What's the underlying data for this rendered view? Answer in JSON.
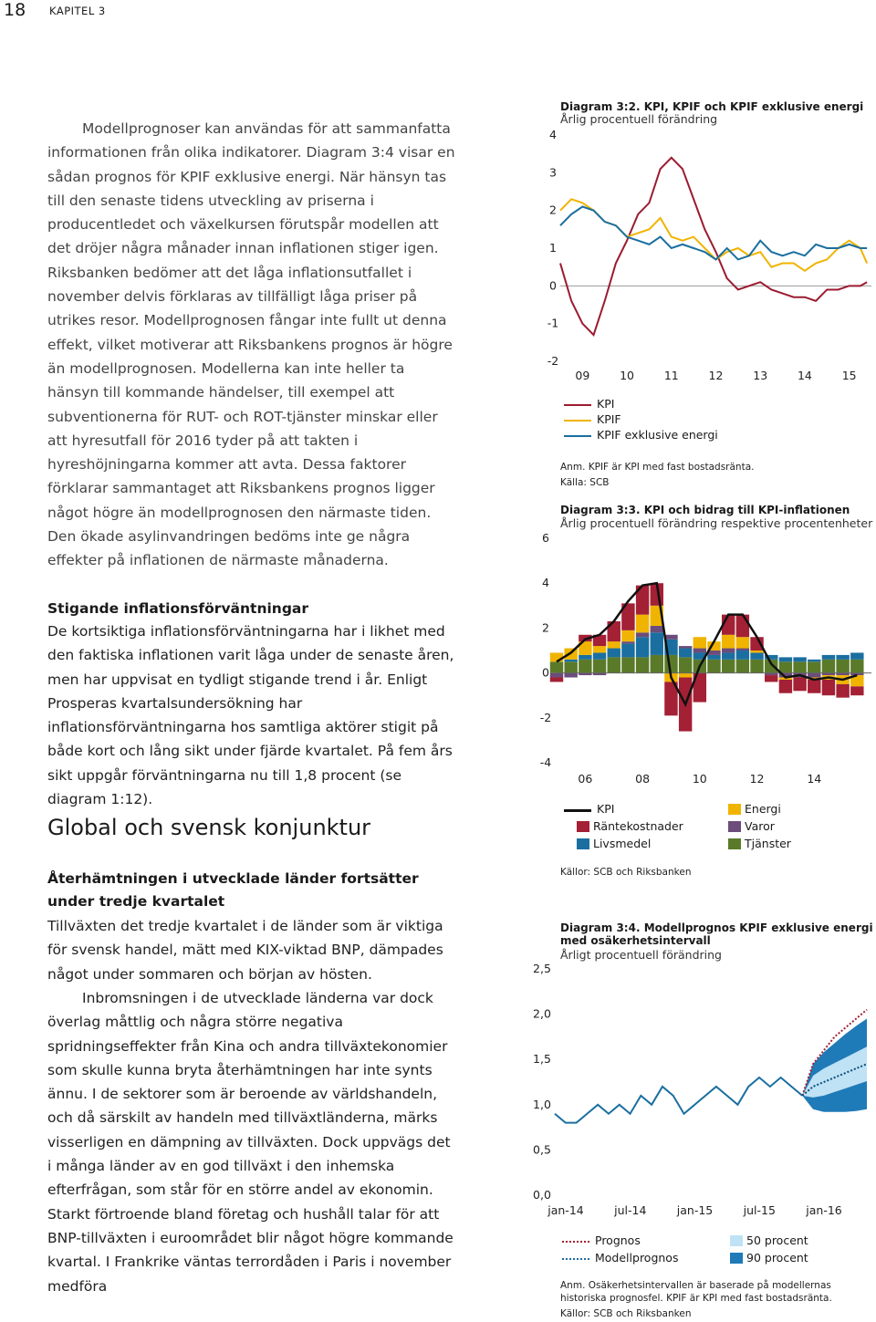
{
  "header": {
    "page_number": "18",
    "chapter": "KAPITEL 3"
  },
  "body": {
    "p1": "Modellprognoser kan användas för att sammanfatta informationen från olika indikatorer. Diagram 3:4 visar en sådan prognos för KPIF exklusive energi. När hänsyn tas till den senaste tidens utveckling av priserna i producentledet och växelkursen förutspår modellen att det dröjer några månader innan inflationen stiger igen. Riksbanken bedömer att det låga inflationsutfallet i november delvis förklaras av tillfälligt låga priser på utrikes resor. Modellprognosen fångar inte fullt ut denna effekt, vilket motiverar att Riksbankens prognos är högre än modellprognosen. Modellerna kan inte heller ta hänsyn till kommande händelser, till exempel att subventionerna för RUT- och ROT-tjänster minskar eller att hyresutfall för 2016 tyder på att takten i hyreshöjningarna kommer att avta. Dessa faktorer förklarar sammantaget att Riksbankens prognos ligger något högre än modellprognosen den närmaste tiden. Den ökade asylinvandringen bedöms inte ge några effekter på inflationen de närmaste månaderna.",
    "sub1": "Stigande inflationsförväntningar",
    "p2": "De kortsiktiga inflationsförväntningarna har i likhet med den faktiska inflationen varit låga under de senaste åren, men har uppvisat en tydligt stigande trend i år. Enligt Prosperas kvartalsundersökning har inflationsförväntningarna hos samtliga aktörer stigit på både kort och lång sikt under fjärde kvartalet. På fem års sikt uppgår förväntningarna nu till 1,8 procent (se diagram 1:12).",
    "section": "Global och svensk konjunktur",
    "sub2": "Återhämtningen i utvecklade länder fortsätter under tredje kvartalet",
    "p3": "Tillväxten det tredje kvartalet i de länder som är viktiga för svensk handel, mätt med KIX-viktad BNP, dämpades något under sommaren och början av hösten.",
    "p4": "Inbromsningen i de utvecklade länderna var dock överlag måttlig och några större negativa spridningseffekter från Kina och andra tillväxtekonomier som skulle kunna bryta återhämtningen har inte synts ännu. I de sektorer som är beroende av världshandeln, och då särskilt av handeln med tillväxtländerna, märks visserligen en dämpning av tillväxten. Dock uppvägs det i många länder av en god tillväxt i den inhemska efterfrågan, som står för en större andel av ekonomin. Starkt förtroende bland företag och hushåll talar för att BNP-tillväxten i euroområdet blir något högre kommande kvartal. I Frankrike väntas terrordåden i Paris i november medföra"
  },
  "chart_data": [
    {
      "type": "line",
      "id": "diagram-3-2",
      "title": "Diagram 3:2. KPI, KPIF och KPIF exklusive energi",
      "subtitle": "Årlig procentuell förändring",
      "ylim": [
        -2,
        4
      ],
      "y_ticks": [
        "4",
        "3",
        "2",
        "1",
        "0",
        "-1",
        "-2"
      ],
      "x_range": [
        2009,
        2016
      ],
      "x_ticks": [
        "09",
        "10",
        "11",
        "12",
        "13",
        "14",
        "15"
      ],
      "legend": [
        "KPI",
        "KPIF",
        "KPIF exklusive energi"
      ],
      "colors": {
        "KPI": "#9b1b30",
        "KPIF": "#f0b400",
        "KPIF exklusive energi": "#1a6fa0"
      },
      "series": [
        {
          "name": "KPI",
          "x": [
            2009.0,
            2009.25,
            2009.5,
            2009.75,
            2010.0,
            2010.25,
            2010.5,
            2010.75,
            2011.0,
            2011.25,
            2011.5,
            2011.75,
            2012.0,
            2012.25,
            2012.5,
            2012.75,
            2013.0,
            2013.25,
            2013.5,
            2013.75,
            2014.0,
            2014.25,
            2014.5,
            2014.75,
            2015.0,
            2015.25,
            2015.5,
            2015.75,
            2015.9
          ],
          "y": [
            0.6,
            -0.4,
            -1.0,
            -1.3,
            -0.4,
            0.6,
            1.2,
            1.9,
            2.2,
            3.1,
            3.4,
            3.1,
            2.3,
            1.5,
            0.9,
            0.2,
            -0.1,
            0.0,
            0.1,
            -0.1,
            -0.2,
            -0.3,
            -0.3,
            -0.4,
            -0.1,
            -0.1,
            0.0,
            0.0,
            0.1
          ]
        },
        {
          "name": "KPIF",
          "x": [
            2009.0,
            2009.25,
            2009.5,
            2009.75,
            2010.0,
            2010.25,
            2010.5,
            2010.75,
            2011.0,
            2011.25,
            2011.5,
            2011.75,
            2012.0,
            2012.25,
            2012.5,
            2012.75,
            2013.0,
            2013.25,
            2013.5,
            2013.75,
            2014.0,
            2014.25,
            2014.5,
            2014.75,
            2015.0,
            2015.25,
            2015.5,
            2015.75,
            2015.9
          ],
          "y": [
            2.0,
            2.3,
            2.2,
            2.0,
            1.7,
            1.6,
            1.3,
            1.4,
            1.5,
            1.8,
            1.3,
            1.2,
            1.3,
            1.0,
            0.7,
            0.9,
            1.0,
            0.8,
            0.9,
            0.5,
            0.6,
            0.6,
            0.4,
            0.6,
            0.7,
            1.0,
            1.2,
            1.0,
            0.6
          ]
        },
        {
          "name": "KPIF exklusive energi",
          "x": [
            2009.0,
            2009.25,
            2009.5,
            2009.75,
            2010.0,
            2010.25,
            2010.5,
            2010.75,
            2011.0,
            2011.25,
            2011.5,
            2011.75,
            2012.0,
            2012.25,
            2012.5,
            2012.75,
            2013.0,
            2013.25,
            2013.5,
            2013.75,
            2014.0,
            2014.25,
            2014.5,
            2014.75,
            2015.0,
            2015.25,
            2015.5,
            2015.75,
            2015.9
          ],
          "y": [
            1.6,
            1.9,
            2.1,
            2.0,
            1.7,
            1.6,
            1.3,
            1.2,
            1.1,
            1.3,
            1.0,
            1.1,
            1.0,
            0.9,
            0.7,
            1.0,
            0.7,
            0.8,
            1.2,
            0.9,
            0.8,
            0.9,
            0.8,
            1.1,
            1.0,
            1.0,
            1.1,
            1.0,
            1.0
          ]
        }
      ],
      "notes": [
        "Anm. KPIF är KPI med fast bostadsränta.",
        "Källa: SCB"
      ]
    },
    {
      "type": "bar",
      "stacked": true,
      "id": "diagram-3-3",
      "title": "Diagram 3:3. KPI och bidrag till KPI-inflationen",
      "subtitle": "Årlig procentuell förändring respektive procentenheter",
      "ylim": [
        -4,
        6
      ],
      "y_ticks": [
        "6",
        "4",
        "2",
        "0",
        "-2",
        "-4"
      ],
      "x_range": [
        2005,
        2016
      ],
      "x_ticks": [
        "06",
        "08",
        "10",
        "12",
        "14"
      ],
      "x": [
        2005.0,
        2005.5,
        2006.0,
        2006.5,
        2007.0,
        2007.5,
        2008.0,
        2008.5,
        2009.0,
        2009.5,
        2010.0,
        2010.5,
        2011.0,
        2011.5,
        2012.0,
        2012.5,
        2013.0,
        2013.5,
        2014.0,
        2014.5,
        2015.0,
        2015.5
      ],
      "series": [
        {
          "name": "Tjänster",
          "color": "#5a7a2a",
          "values": [
            0.5,
            0.5,
            0.6,
            0.6,
            0.7,
            0.7,
            0.7,
            0.8,
            0.8,
            0.7,
            0.6,
            0.6,
            0.6,
            0.6,
            0.6,
            0.6,
            0.5,
            0.5,
            0.5,
            0.6,
            0.6,
            0.6
          ]
        },
        {
          "name": "Livsmedel",
          "color": "#1a6fa0",
          "values": [
            0.0,
            0.1,
            0.2,
            0.3,
            0.4,
            0.6,
            0.9,
            1.0,
            0.7,
            0.4,
            0.3,
            0.2,
            0.3,
            0.4,
            0.3,
            0.2,
            0.2,
            0.2,
            0.1,
            0.2,
            0.2,
            0.3
          ]
        },
        {
          "name": "Varor",
          "color": "#6b4c7a",
          "values": [
            -0.2,
            -0.2,
            -0.1,
            -0.1,
            0.0,
            0.1,
            0.2,
            0.3,
            0.2,
            0.1,
            0.2,
            0.2,
            0.2,
            0.1,
            0.0,
            -0.1,
            -0.2,
            -0.2,
            -0.2,
            -0.1,
            -0.1,
            -0.1
          ]
        },
        {
          "name": "Energi",
          "color": "#f0b400",
          "values": [
            0.4,
            0.5,
            0.6,
            0.3,
            0.3,
            0.5,
            0.8,
            0.9,
            -0.4,
            -0.2,
            0.5,
            0.4,
            0.6,
            0.5,
            0.1,
            0.0,
            -0.1,
            0.0,
            -0.1,
            -0.2,
            -0.4,
            -0.5
          ]
        },
        {
          "name": "Räntekostnader",
          "color": "#a32035",
          "values": [
            -0.2,
            0.0,
            0.3,
            0.5,
            0.9,
            1.2,
            1.3,
            1.0,
            -1.5,
            -2.4,
            -1.3,
            0.0,
            0.9,
            1.0,
            0.6,
            -0.3,
            -0.6,
            -0.6,
            -0.6,
            -0.7,
            -0.6,
            -0.4
          ]
        }
      ],
      "line": {
        "name": "KPI",
        "color": "#111111",
        "values": [
          0.5,
          0.9,
          1.5,
          1.7,
          2.3,
          3.2,
          3.9,
          4.0,
          -0.2,
          -1.4,
          0.3,
          1.4,
          2.6,
          2.6,
          1.6,
          0.4,
          -0.2,
          -0.1,
          -0.3,
          -0.2,
          -0.3,
          -0.1
        ]
      },
      "legend": [
        "KPI",
        "Räntekostnader",
        "Livsmedel",
        "Energi",
        "Varor",
        "Tjänster"
      ],
      "notes": [
        "Källor: SCB och Riksbanken"
      ]
    },
    {
      "type": "area",
      "id": "diagram-3-4",
      "title": "Diagram 3:4. Modellprognos KPIF exklusive energi med osäkerhetsintervall",
      "subtitle": "Årligt procentuell förändring",
      "ylim": [
        0,
        2.5
      ],
      "y_ticks": [
        "2,5",
        "2,0",
        "1,5",
        "1,0",
        "0,5",
        "0,0"
      ],
      "x_ticks": [
        "jan-14",
        "jul-14",
        "jan-15",
        "jul-15",
        "jan-16"
      ],
      "actual": {
        "months": [
          0,
          1,
          2,
          3,
          4,
          5,
          6,
          7,
          8,
          9,
          10,
          11,
          12,
          13,
          14,
          15,
          16,
          17,
          18,
          19,
          20,
          21,
          22,
          23
        ],
        "values": [
          0.9,
          0.8,
          0.8,
          0.9,
          1.0,
          0.9,
          1.0,
          0.9,
          1.1,
          1.0,
          1.2,
          1.1,
          0.9,
          1.0,
          1.1,
          1.2,
          1.1,
          1.0,
          1.2,
          1.3,
          1.2,
          1.3,
          1.2,
          1.1
        ]
      },
      "forecast_months": [
        23,
        24,
        25,
        26,
        27,
        28,
        29
      ],
      "prognos": [
        1.1,
        1.45,
        1.6,
        1.75,
        1.85,
        1.95,
        2.05
      ],
      "modellprognos": [
        1.1,
        1.2,
        1.25,
        1.3,
        1.35,
        1.4,
        1.45
      ],
      "band_50": {
        "low": [
          1.1,
          1.08,
          1.1,
          1.14,
          1.18,
          1.22,
          1.26
        ],
        "high": [
          1.1,
          1.32,
          1.4,
          1.46,
          1.52,
          1.58,
          1.64
        ]
      },
      "band_90": {
        "low": [
          1.1,
          0.95,
          0.92,
          0.92,
          0.92,
          0.93,
          0.95
        ],
        "high": [
          1.1,
          1.45,
          1.58,
          1.68,
          1.78,
          1.87,
          1.95
        ]
      },
      "legend": [
        "Prognos",
        "Modellprognos",
        "50 procent",
        "90 procent"
      ],
      "colors": {
        "prognos": "#a32035",
        "modellprognos": "#1a6fa0",
        "band_50": "#bfe2f5",
        "band_90": "#1f7ab8"
      },
      "notes": [
        "Anm. Osäkerhetsintervallen är baserade på modellernas historiska prognosfel. KPIF är KPI med fast bostadsränta.",
        "Källor: SCB och Riksbanken"
      ]
    }
  ]
}
